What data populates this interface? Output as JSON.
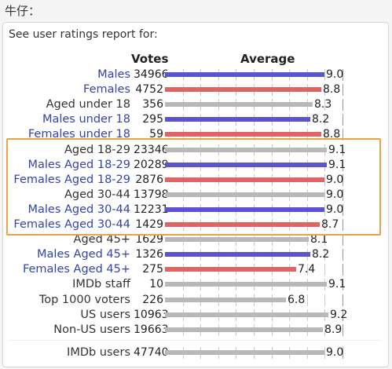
{
  "caption": "牛仔：",
  "report_label": "See user ratings report for:",
  "headers": {
    "votes": "Votes",
    "average": "Average"
  },
  "colors": {
    "male": "#5a55cc",
    "female": "#e06464",
    "neutral": "#b8b8b8",
    "highlight": "#e9a24a"
  },
  "chart_data": {
    "type": "bar",
    "xlim": [
      0,
      10
    ],
    "rows": [
      {
        "label": "Males",
        "votes": "34966",
        "average": 9.0,
        "avg_text": "9.0",
        "group": "male"
      },
      {
        "label": "Females",
        "votes": "4752",
        "average": 8.8,
        "avg_text": "8.8",
        "group": "female"
      },
      {
        "label": "Aged under 18",
        "votes": "356",
        "average": 8.3,
        "avg_text": "8.3",
        "group": "neutral"
      },
      {
        "label": "Males under 18",
        "votes": "295",
        "average": 8.2,
        "avg_text": "8.2",
        "group": "male"
      },
      {
        "label": "Females under 18",
        "votes": "59",
        "average": 8.8,
        "avg_text": "8.8",
        "group": "female"
      },
      {
        "label": "Aged 18-29",
        "votes": "23346",
        "average": 9.1,
        "avg_text": "9.1",
        "group": "neutral"
      },
      {
        "label": "Males Aged 18-29",
        "votes": "20289",
        "average": 9.1,
        "avg_text": "9.1",
        "group": "male"
      },
      {
        "label": "Females Aged 18-29",
        "votes": "2876",
        "average": 9.0,
        "avg_text": "9.0",
        "group": "female"
      },
      {
        "label": "Aged 30-44",
        "votes": "13798",
        "average": 9.0,
        "avg_text": "9.0",
        "group": "neutral"
      },
      {
        "label": "Males Aged 30-44",
        "votes": "12231",
        "average": 9.0,
        "avg_text": "9.0",
        "group": "male"
      },
      {
        "label": "Females Aged 30-44",
        "votes": "1429",
        "average": 8.7,
        "avg_text": "8.7",
        "group": "female"
      },
      {
        "label": "Aged 45+",
        "votes": "1629",
        "average": 8.1,
        "avg_text": "8.1",
        "group": "neutral"
      },
      {
        "label": "Males Aged 45+",
        "votes": "1326",
        "average": 8.2,
        "avg_text": "8.2",
        "group": "male"
      },
      {
        "label": "Females Aged 45+",
        "votes": "275",
        "average": 7.4,
        "avg_text": "7.4",
        "group": "female"
      },
      {
        "label": "IMDb staff",
        "votes": "10",
        "average": 9.1,
        "avg_text": "9.1",
        "group": "neutral"
      },
      {
        "label": "Top 1000 voters",
        "votes": "226",
        "average": 6.8,
        "avg_text": "6.8",
        "group": "neutral"
      },
      {
        "label": "US users",
        "votes": "10963",
        "average": 9.2,
        "avg_text": "9.2",
        "group": "neutral"
      },
      {
        "label": "Non-US users",
        "votes": "19663",
        "average": 8.9,
        "avg_text": "8.9",
        "group": "neutral"
      },
      {
        "label": "IMDb users",
        "votes": "47740",
        "average": 9.0,
        "avg_text": "9.0",
        "group": "neutral"
      }
    ]
  }
}
